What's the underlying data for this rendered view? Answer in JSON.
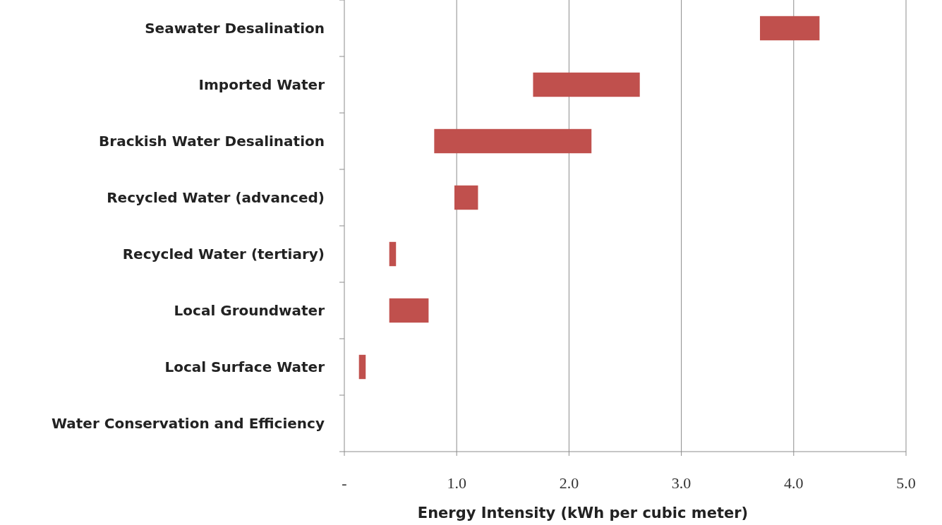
{
  "chart_data": {
    "type": "bar",
    "orientation": "horizontal",
    "xlabel": "Energy Intensity (kWh per cubic meter)",
    "categories": [
      "Seawater Desalination",
      "Imported Water",
      "Brackish Water Desalination",
      "Recycled Water (advanced)",
      "Recycled Water (tertiary)",
      "Local Groundwater",
      "Local Surface Water",
      "Water Conservation and Efficiency"
    ],
    "base": [
      3.7,
      1.68,
      0.8,
      0.98,
      0.4,
      0.4,
      0.13,
      null
    ],
    "values": [
      0.53,
      0.95,
      1.4,
      0.21,
      0.06,
      0.35,
      0.06,
      null
    ],
    "color": "#c0504d",
    "xlim": [
      0,
      5
    ],
    "xticks": [
      {
        "value": 0,
        "label": "-"
      },
      {
        "value": 1,
        "label": "1.0"
      },
      {
        "value": 2,
        "label": "2.0"
      },
      {
        "value": 3,
        "label": "3.0"
      },
      {
        "value": 4,
        "label": "4.0"
      },
      {
        "value": 5,
        "label": "5.0"
      }
    ],
    "grid": "x"
  }
}
